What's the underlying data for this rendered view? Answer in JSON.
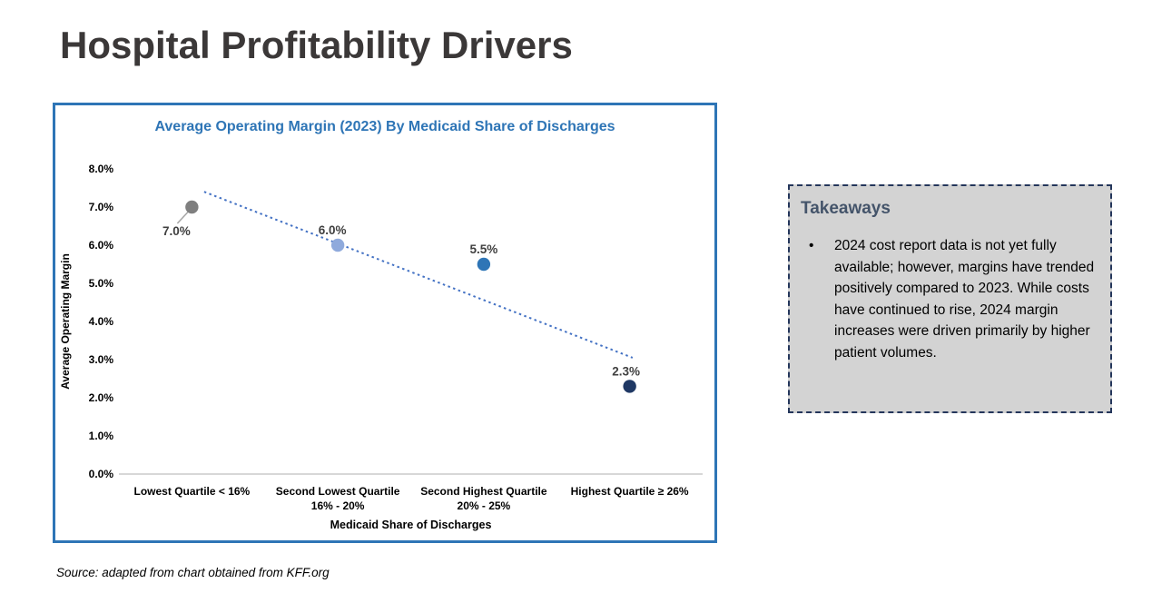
{
  "page": {
    "title": "Hospital Profitability Drivers"
  },
  "chart_data": {
    "type": "scatter",
    "title": "Average Operating Margin (2023) By Medicaid Share of Discharges",
    "xlabel": "Medicaid Share of Discharges",
    "ylabel": "Average Operating Margin",
    "ylim": [
      0,
      8
    ],
    "ytick_step": 1,
    "ytick_suffix": "%",
    "gridlines": false,
    "legend": false,
    "axis_line_color": "#BFBFBF",
    "categories": [
      "Lowest Quartile < 16%",
      "Second Lowest Quartile\n16% - 20%",
      "Second Highest Quartile\n20% - 25%",
      "Highest Quartile ≥ 26%"
    ],
    "points": [
      {
        "category": "Lowest Quartile < 16%",
        "value": 7.0,
        "label": "7.0%",
        "color": "#7F7F7F",
        "label_position": "below-left-leader",
        "label_dx": 0
      },
      {
        "category": "Second Lowest Quartile 16% - 20%",
        "value": 6.0,
        "label": "6.0%",
        "color": "#8FAADC",
        "label_position": "above",
        "label_dx": -6
      },
      {
        "category": "Second Highest Quartile 20% - 25%",
        "value": 5.5,
        "label": "5.5%",
        "color": "#2E75B6",
        "label_position": "above",
        "label_dx": 0
      },
      {
        "category": "Highest Quartile ≥ 26%",
        "value": 2.3,
        "label": "2.3%",
        "color": "#1F3864",
        "label_position": "above",
        "label_dx": -4
      }
    ],
    "trendline": {
      "style": "dotted",
      "color": "#4472C4",
      "x1_frac": 0.146,
      "y1": 7.4,
      "x2_frac": 0.88,
      "y2": 3.05
    }
  },
  "takeaways": {
    "heading": "Takeaways",
    "bullets": [
      "2024 cost report data is not yet fully available; however, margins have trended positively compared to 2023. While costs have continued to rise, 2024 margin increases were driven primarily by higher patient volumes."
    ]
  },
  "source": {
    "text": "Source: adapted from chart obtained from KFF.org"
  },
  "colors": {
    "accent_blue": "#2E75B6",
    "dark_navy": "#1F3864",
    "light_blue": "#8FAADC",
    "gray_point": "#7F7F7F",
    "trend_blue": "#4472C4",
    "takeaways_bg": "#D3D3D3",
    "takeaways_border": "#24365B",
    "heading_slate": "#44546A"
  }
}
